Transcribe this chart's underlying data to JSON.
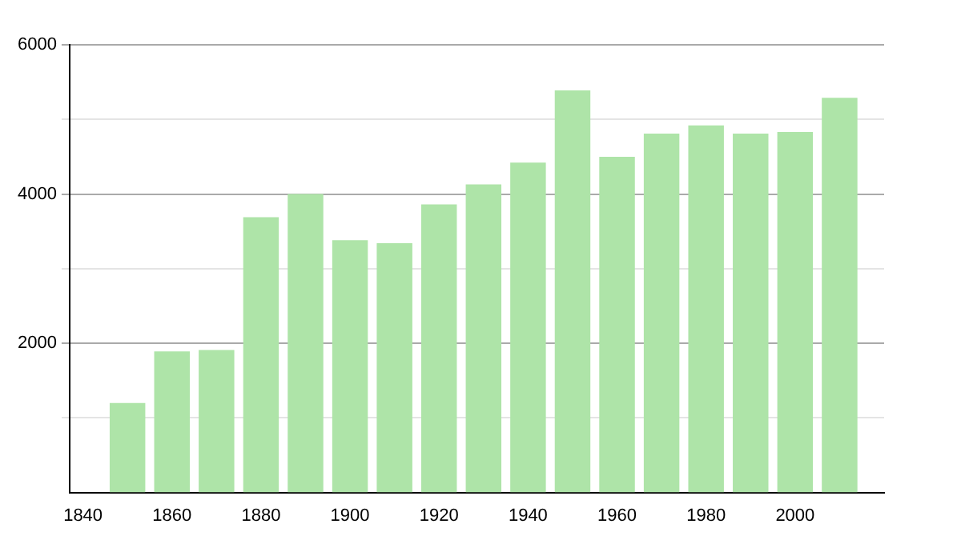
{
  "chart_data": {
    "type": "bar",
    "x": [
      1850,
      1860,
      1870,
      1880,
      1890,
      1900,
      1910,
      1920,
      1930,
      1940,
      1950,
      1960,
      1970,
      1980,
      1990,
      2000,
      2010
    ],
    "values": [
      1200,
      1890,
      1910,
      3690,
      4000,
      3380,
      3340,
      3860,
      4130,
      4420,
      5390,
      4500,
      4810,
      4920,
      4810,
      4830,
      5290
    ],
    "color": "#aee4a8",
    "xlim": [
      1837,
      2020
    ],
    "xticks": [
      1840,
      1860,
      1880,
      1900,
      1920,
      1940,
      1960,
      1980,
      2000
    ],
    "ylim": [
      0,
      6000
    ],
    "yticks": [
      {
        "value": 1000,
        "label": null
      },
      2000,
      {
        "value": 3000,
        "label": null
      },
      4000,
      {
        "value": 5000,
        "label": null
      },
      6000
    ],
    "grid": "y"
  }
}
